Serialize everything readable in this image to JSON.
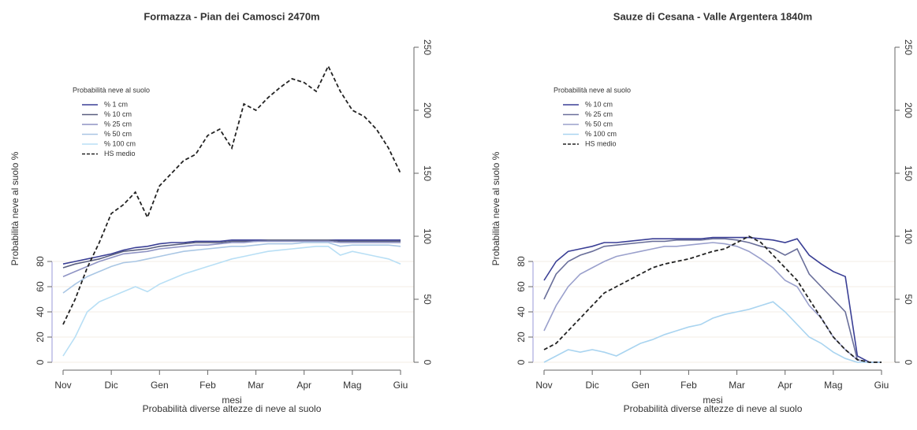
{
  "chart_data": [
    {
      "type": "line",
      "title": "Formazza - Pian dei Camosci 2470m",
      "xlabel": "mesi",
      "subtitle": "Probabilità diverse altezze di neve al suolo",
      "ylabel": "Probabilità neve al suolo %",
      "legend_title": "Probabilità neve al suolo",
      "legend": "upper left",
      "x": [
        0,
        0.25,
        0.5,
        0.75,
        1,
        1.25,
        1.5,
        1.75,
        2,
        2.25,
        2.5,
        2.75,
        3,
        3.25,
        3.5,
        3.75,
        4,
        4.25,
        4.5,
        4.75,
        5,
        5.25,
        5.5,
        5.75,
        6,
        6.25,
        6.5,
        6.75,
        7
      ],
      "xlim": [
        0,
        7
      ],
      "xticks": [
        {
          "value": 0,
          "label": "Nov"
        },
        {
          "value": 1,
          "label": "Dic"
        },
        {
          "value": 2,
          "label": "Gen"
        },
        {
          "value": 3,
          "label": "Feb"
        },
        {
          "value": 4,
          "label": "Mar"
        },
        {
          "value": 5,
          "label": "Apr"
        },
        {
          "value": 6,
          "label": "Mag"
        },
        {
          "value": 7,
          "label": "Giu"
        }
      ],
      "ylim": [
        0,
        250
      ],
      "yticks": [
        0,
        20,
        40,
        60,
        80
      ],
      "y2lim": [
        0,
        250
      ],
      "y2ticks": [
        0,
        50,
        100,
        150,
        200,
        250
      ],
      "series": [
        {
          "name": "% 1 cm",
          "color": "#3a3f95",
          "values": [
            78,
            80,
            82,
            84,
            86,
            89,
            91,
            92,
            94,
            95,
            95,
            96,
            96,
            96,
            97,
            97,
            97,
            97,
            97,
            97,
            97,
            97,
            97,
            97,
            97,
            97,
            97,
            97,
            97
          ]
        },
        {
          "name": "% 10 cm",
          "color": "#5a5f80",
          "values": [
            75,
            78,
            80,
            82,
            85,
            88,
            89,
            90,
            92,
            93,
            94,
            95,
            95,
            95,
            96,
            96,
            96,
            97,
            97,
            97,
            97,
            97,
            97,
            96,
            96,
            96,
            96,
            96,
            96
          ]
        },
        {
          "name": "% 25 cm",
          "color": "#8f94c4",
          "values": [
            68,
            72,
            76,
            80,
            83,
            86,
            87,
            88,
            90,
            91,
            92,
            93,
            93,
            94,
            95,
            95,
            96,
            96,
            96,
            96,
            96,
            96,
            96,
            95,
            95,
            95,
            95,
            95,
            95
          ]
        },
        {
          "name": "% 50 cm",
          "color": "#a9c6e4",
          "values": [
            55,
            62,
            68,
            72,
            76,
            79,
            80,
            82,
            84,
            86,
            88,
            89,
            90,
            91,
            92,
            92,
            93,
            94,
            94,
            94,
            95,
            95,
            95,
            92,
            93,
            93,
            93,
            93,
            92
          ]
        },
        {
          "name": "% 100 cm",
          "color": "#b8dff5",
          "values": [
            5,
            20,
            40,
            48,
            52,
            56,
            60,
            56,
            62,
            66,
            70,
            73,
            76,
            79,
            82,
            84,
            86,
            88,
            89,
            90,
            91,
            92,
            92,
            85,
            88,
            86,
            84,
            82,
            78
          ]
        },
        {
          "name": "HS medio",
          "color": "#222222",
          "dash": true,
          "axis": "y2",
          "values": [
            30,
            50,
            75,
            95,
            118,
            125,
            135,
            115,
            140,
            150,
            160,
            165,
            180,
            185,
            170,
            205,
            200,
            210,
            218,
            225,
            222,
            215,
            235,
            215,
            200,
            195,
            185,
            170,
            150
          ]
        }
      ]
    },
    {
      "type": "line",
      "title": "Sauze di Cesana - Valle Argentera 1840m",
      "xlabel": "mesi",
      "subtitle": "Probabilità diverse altezze di neve al suolo",
      "ylabel": "Probabilità neve al suolo %",
      "legend_title": "Probabilità neve al suolo",
      "legend": "upper left",
      "x": [
        0,
        0.25,
        0.5,
        0.75,
        1,
        1.25,
        1.5,
        1.75,
        2,
        2.25,
        2.5,
        2.75,
        3,
        3.25,
        3.5,
        3.75,
        4,
        4.25,
        4.5,
        4.75,
        5,
        5.25,
        5.5,
        5.75,
        6,
        6.25,
        6.5,
        6.75,
        7
      ],
      "xlim": [
        0,
        7
      ],
      "xticks": [
        {
          "value": 0,
          "label": "Nov"
        },
        {
          "value": 1,
          "label": "Dic"
        },
        {
          "value": 2,
          "label": "Gen"
        },
        {
          "value": 3,
          "label": "Feb"
        },
        {
          "value": 4,
          "label": "Mar"
        },
        {
          "value": 5,
          "label": "Apr"
        },
        {
          "value": 6,
          "label": "Mag"
        },
        {
          "value": 7,
          "label": "Giu"
        }
      ],
      "ylim": [
        0,
        250
      ],
      "yticks": [
        0,
        20,
        40,
        60,
        80
      ],
      "y2lim": [
        0,
        250
      ],
      "y2ticks": [
        0,
        50,
        100,
        150,
        200,
        250
      ],
      "series": [
        {
          "name": "% 10 cm",
          "color": "#3a3f95",
          "values": [
            65,
            80,
            88,
            90,
            92,
            95,
            95,
            96,
            97,
            98,
            98,
            98,
            98,
            98,
            99,
            99,
            99,
            99,
            98,
            97,
            95,
            98,
            85,
            78,
            72,
            68,
            5,
            0,
            0
          ]
        },
        {
          "name": "% 25 cm",
          "color": "#6a6f9a",
          "values": [
            50,
            70,
            80,
            85,
            88,
            92,
            93,
            94,
            95,
            96,
            96,
            97,
            97,
            97,
            98,
            98,
            97,
            95,
            92,
            90,
            85,
            90,
            70,
            60,
            50,
            40,
            2,
            0,
            0
          ]
        },
        {
          "name": "% 50 cm",
          "color": "#9aa0cc",
          "values": [
            25,
            45,
            60,
            70,
            75,
            80,
            84,
            86,
            88,
            90,
            92,
            92,
            93,
            94,
            95,
            94,
            92,
            88,
            82,
            75,
            65,
            60,
            45,
            35,
            20,
            10,
            2,
            0,
            0
          ]
        },
        {
          "name": "% 100 cm",
          "color": "#a9d4f0",
          "values": [
            0,
            5,
            10,
            8,
            10,
            8,
            5,
            10,
            15,
            18,
            22,
            25,
            28,
            30,
            35,
            38,
            40,
            42,
            45,
            48,
            40,
            30,
            20,
            15,
            8,
            3,
            0,
            0,
            0
          ]
        },
        {
          "name": "HS medio",
          "color": "#222222",
          "dash": true,
          "axis": "y2",
          "values": [
            10,
            15,
            25,
            35,
            45,
            55,
            60,
            65,
            70,
            75,
            78,
            80,
            82,
            85,
            88,
            90,
            95,
            100,
            95,
            85,
            75,
            65,
            50,
            35,
            20,
            10,
            2,
            0,
            0
          ]
        }
      ]
    }
  ]
}
